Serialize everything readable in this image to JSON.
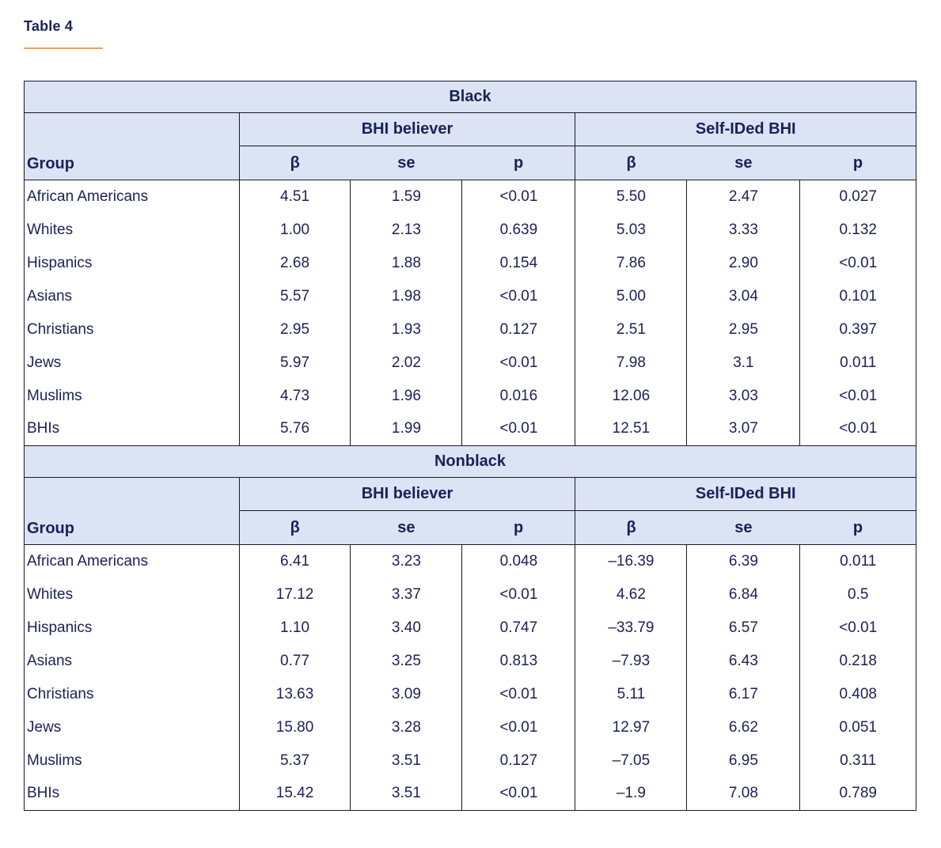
{
  "page": {
    "title": "Table 4"
  },
  "colors": {
    "header_fill": "#dbe3f5",
    "text": "#1b2156",
    "border": "#1a1a22",
    "accent_underline": "#f5a24b"
  },
  "table": {
    "group_column_header": "Group",
    "column_groups": [
      "BHI believer",
      "Self-IDed BHI"
    ],
    "sub_headers": [
      "β",
      "se",
      "p"
    ],
    "sections": [
      {
        "label": "Black",
        "rows": [
          {
            "group": "African Americans",
            "values": [
              "4.51",
              "1.59",
              "<0.01",
              "5.50",
              "2.47",
              "0.027"
            ]
          },
          {
            "group": "Whites",
            "values": [
              "1.00",
              "2.13",
              "0.639",
              "5.03",
              "3.33",
              "0.132"
            ]
          },
          {
            "group": "Hispanics",
            "values": [
              "2.68",
              "1.88",
              "0.154",
              "7.86",
              "2.90",
              "<0.01"
            ]
          },
          {
            "group": "Asians",
            "values": [
              "5.57",
              "1.98",
              "<0.01",
              "5.00",
              "3.04",
              "0.101"
            ]
          },
          {
            "group": "Christians",
            "values": [
              "2.95",
              "1.93",
              "0.127",
              "2.51",
              "2.95",
              "0.397"
            ]
          },
          {
            "group": "Jews",
            "values": [
              "5.97",
              "2.02",
              "<0.01",
              "7.98",
              "3.1",
              "0.011"
            ]
          },
          {
            "group": "Muslims",
            "values": [
              "4.73",
              "1.96",
              "0.016",
              "12.06",
              "3.03",
              "<0.01"
            ]
          },
          {
            "group": "BHIs",
            "values": [
              "5.76",
              "1.99",
              "<0.01",
              "12.51",
              "3.07",
              "<0.01"
            ]
          }
        ]
      },
      {
        "label": "Nonblack",
        "rows": [
          {
            "group": "African Americans",
            "values": [
              "6.41",
              "3.23",
              "0.048",
              "–16.39",
              "6.39",
              "0.011"
            ]
          },
          {
            "group": "Whites",
            "values": [
              "17.12",
              "3.37",
              "<0.01",
              "4.62",
              "6.84",
              "0.5"
            ]
          },
          {
            "group": "Hispanics",
            "values": [
              "1.10",
              "3.40",
              "0.747",
              "–33.79",
              "6.57",
              "<0.01"
            ]
          },
          {
            "group": "Asians",
            "values": [
              "0.77",
              "3.25",
              "0.813",
              "–7.93",
              "6.43",
              "0.218"
            ]
          },
          {
            "group": "Christians",
            "values": [
              "13.63",
              "3.09",
              "<0.01",
              "5.11",
              "6.17",
              "0.408"
            ]
          },
          {
            "group": "Jews",
            "values": [
              "15.80",
              "3.28",
              "<0.01",
              "12.97",
              "6.62",
              "0.051"
            ]
          },
          {
            "group": "Muslims",
            "values": [
              "5.37",
              "3.51",
              "0.127",
              "–7.05",
              "6.95",
              "0.311"
            ]
          },
          {
            "group": "BHIs",
            "values": [
              "15.42",
              "3.51",
              "<0.01",
              "–1.9",
              "7.08",
              "0.789"
            ]
          }
        ]
      }
    ]
  }
}
